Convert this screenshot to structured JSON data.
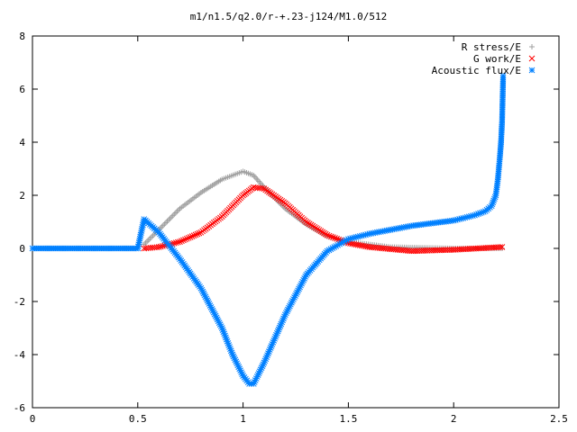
{
  "chart_data": {
    "type": "scatter",
    "title": "m1/n1.5/q2.0/r-+.23-j124/M1.0/512",
    "xlabel": "",
    "ylabel": "",
    "xlim": [
      0,
      2.5
    ],
    "ylim": [
      -6,
      8
    ],
    "xticks": [
      "0",
      "0.5",
      "1",
      "1.5",
      "2",
      "2.5"
    ],
    "yticks": [
      "8",
      "6",
      "4",
      "2",
      "0",
      "-2",
      "-4",
      "-6"
    ],
    "grid": false,
    "legend_position": "top-right",
    "series": [
      {
        "name": "R stress/E",
        "marker": "plus",
        "color": "#a0a0a0",
        "points": [
          [
            0.53,
            0.15
          ],
          [
            0.6,
            0.7
          ],
          [
            0.7,
            1.5
          ],
          [
            0.8,
            2.1
          ],
          [
            0.9,
            2.6
          ],
          [
            1.0,
            2.9
          ],
          [
            1.05,
            2.75
          ],
          [
            1.1,
            2.3
          ],
          [
            1.2,
            1.5
          ],
          [
            1.3,
            0.9
          ],
          [
            1.4,
            0.45
          ],
          [
            1.5,
            0.25
          ],
          [
            1.7,
            0.05
          ],
          [
            2.0,
            0.0
          ],
          [
            2.23,
            0.0
          ]
        ]
      },
      {
        "name": "G work/E",
        "marker": "cross",
        "color": "#ff0000",
        "points": [
          [
            0.53,
            0.0
          ],
          [
            0.6,
            0.05
          ],
          [
            0.7,
            0.25
          ],
          [
            0.8,
            0.6
          ],
          [
            0.9,
            1.2
          ],
          [
            1.0,
            2.0
          ],
          [
            1.05,
            2.3
          ],
          [
            1.1,
            2.25
          ],
          [
            1.2,
            1.7
          ],
          [
            1.3,
            1.0
          ],
          [
            1.4,
            0.5
          ],
          [
            1.5,
            0.2
          ],
          [
            1.6,
            0.05
          ],
          [
            1.8,
            -0.1
          ],
          [
            2.0,
            -0.05
          ],
          [
            2.23,
            0.05
          ]
        ]
      },
      {
        "name": "Acoustic flux/E",
        "marker": "star",
        "color": "#0080ff",
        "points": [
          [
            0.0,
            0.0
          ],
          [
            0.1,
            0.0
          ],
          [
            0.2,
            0.0
          ],
          [
            0.3,
            0.0
          ],
          [
            0.4,
            0.0
          ],
          [
            0.5,
            0.0
          ],
          [
            0.53,
            1.1
          ],
          [
            0.6,
            0.6
          ],
          [
            0.7,
            -0.4
          ],
          [
            0.8,
            -1.5
          ],
          [
            0.9,
            -3.0
          ],
          [
            0.95,
            -4.0
          ],
          [
            1.0,
            -4.8
          ],
          [
            1.03,
            -5.1
          ],
          [
            1.05,
            -5.1
          ],
          [
            1.1,
            -4.3
          ],
          [
            1.2,
            -2.5
          ],
          [
            1.3,
            -1.0
          ],
          [
            1.4,
            -0.1
          ],
          [
            1.5,
            0.35
          ],
          [
            1.6,
            0.55
          ],
          [
            1.7,
            0.7
          ],
          [
            1.8,
            0.85
          ],
          [
            1.9,
            0.95
          ],
          [
            2.0,
            1.05
          ],
          [
            2.1,
            1.25
          ],
          [
            2.15,
            1.4
          ],
          [
            2.18,
            1.6
          ],
          [
            2.2,
            2.0
          ],
          [
            2.21,
            2.6
          ],
          [
            2.22,
            3.5
          ],
          [
            2.225,
            4.0
          ],
          [
            2.23,
            4.8
          ],
          [
            2.235,
            6.5
          ]
        ]
      }
    ]
  }
}
